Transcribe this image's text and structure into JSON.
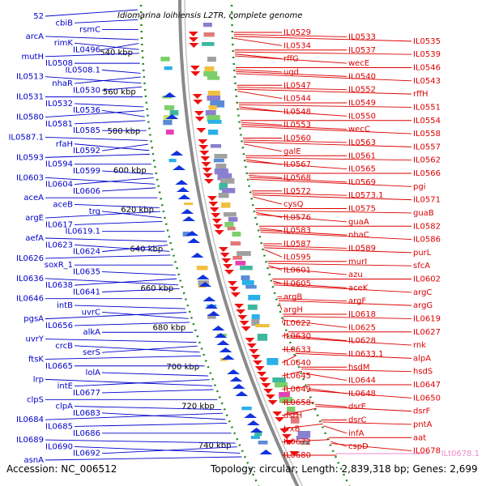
{
  "title": "Idiomarina loihiensis L2TR, complete genome",
  "accession_label": "Accession: NC_006512",
  "topology_label": "Topology: circular; Length: 2,839,318 bp; Genes: 2,699",
  "colors": {
    "left_labels": "#0000cc",
    "right_labels": "#dd0000",
    "rna_label": "#ee88cc",
    "backbone": "#8a8a8a",
    "tick_dots": "#228822"
  },
  "kbp_ticks": [
    "540 kbp",
    "560 kbp",
    "580 kbp",
    "600 kbp",
    "620 kbp",
    "640 kbp",
    "660 kbp",
    "680 kbp",
    "700 kbp",
    "720 kbp",
    "740 kbp"
  ],
  "left_genes": [
    "52",
    "cbiB",
    "rsmC",
    "arcA",
    "rimK",
    "IL0496",
    "mutH",
    "IL0508",
    "IL0508.1",
    "IL0513",
    "nhaR",
    "IL0530",
    "IL0531",
    "IL0532",
    "IL0536",
    "IL0580",
    "IL0581",
    "IL0585",
    "IL0587.1",
    "rfaH",
    "IL0592",
    "IL0593",
    "IL0594",
    "IL0599",
    "IL0603",
    "IL0604",
    "IL0606",
    "aceA",
    "aceB",
    "trg",
    "argE",
    "IL0617",
    "IL0619.1",
    "aefA",
    "IL0623",
    "IL0624",
    "IL0626",
    "soxR_1",
    "IL0635",
    "IL0636",
    "IL0638",
    "IL0641",
    "IL0646",
    "intB",
    "uvrC",
    "pgsA",
    "IL0656",
    "alkA",
    "uvrY",
    "crcB",
    "serS",
    "ftsK",
    "IL0665",
    "lolA",
    "lrp",
    "intE",
    "IL0677",
    "clpS",
    "clpA",
    "IL0683",
    "IL0684",
    "IL0685",
    "IL0686",
    "IL0689",
    "IL0690",
    "IL0692",
    "asnA"
  ],
  "right_genes": [
    "IL0529",
    "IL0533",
    "IL0535",
    "IL0534",
    "IL0537",
    "IL0539",
    "rffG",
    "wecE",
    "IL0546",
    "ugd",
    "IL0540",
    "IL0543",
    "IL0547",
    "IL0552",
    "rffH",
    "IL0544",
    "IL0549",
    "IL0551",
    "IL0548",
    "IL0550",
    "IL0554",
    "IL0553",
    "wecC",
    "IL0558",
    "IL0560",
    "IL0563",
    "IL0557",
    "galE",
    "IL0561",
    "IL0562",
    "IL0567",
    "IL0565",
    "IL0566",
    "IL0568",
    "IL0569",
    "pgi",
    "IL0572",
    "IL0573.1",
    "IL0571",
    "cysQ",
    "IL0575",
    "guaB",
    "IL0576",
    "guaA",
    "IL0582",
    "IL0583",
    "nhaC",
    "IL0586",
    "IL0587",
    "IL0589",
    "purL",
    "IL0595",
    "murI",
    "sfcA",
    "IL0601",
    "azu",
    "IL0602",
    "IL0605",
    "aceK",
    "argC",
    "argB",
    "argF",
    "argG",
    "argH",
    "IL0618",
    "IL0619",
    "IL0622",
    "IL0625",
    "IL0627",
    "IL0630",
    "IL0628",
    "rnk",
    "IL0633",
    "IL0633.1",
    "alpA",
    "IL0640",
    "hsdM",
    "hsdS",
    "IL0645",
    "IL0644",
    "IL0647",
    "IL0649",
    "IL0648",
    "IL0650",
    "IL0658",
    "dsrE",
    "dsrF",
    "dsrH",
    "dsrC",
    "pntA",
    "trxB",
    "infA",
    "aat",
    "IL0672",
    "cspD",
    "IL0678",
    "IL0680"
  ],
  "rna_genes": [
    "ILt0678.1"
  ]
}
